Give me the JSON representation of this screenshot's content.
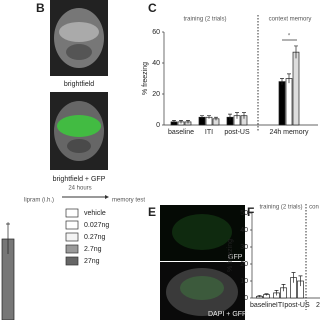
{
  "panels": {
    "b": "B",
    "c": "C",
    "e": "E",
    "f": "F"
  },
  "images": {
    "b_top": "brightfield",
    "b_bottom": "brightfield + GFP",
    "e_top": "GFP",
    "e_bottom": "DAPI + GFP"
  },
  "timeline": {
    "drug": "lipram (i.h.)",
    "delay": "24 hours",
    "test": "memory test"
  },
  "legend": [
    {
      "name": "vehicle",
      "color": "#ffffff"
    },
    {
      "name": "0.027ng",
      "color": "#ffffff"
    },
    {
      "name": "0.27ng",
      "color": "#f4f4f4"
    },
    {
      "name": "2.7ng",
      "color": "#9a9a9a"
    },
    {
      "name": "27ng",
      "color": "#666666"
    }
  ],
  "chart_data": [
    {
      "type": "bar",
      "ylabel": "% freezing",
      "categories": [
        "baseline",
        "ITI",
        "post-US",
        "24h memory"
      ],
      "series": [
        {
          "color": "#000000",
          "values": [
            2,
            5,
            5,
            28
          ],
          "errors": [
            1,
            1,
            2,
            2
          ]
        },
        {
          "color": "#ffffff",
          "values": [
            2,
            5,
            6,
            30
          ],
          "errors": [
            1,
            1,
            2,
            3
          ]
        },
        {
          "color": "#dddddd",
          "values": [
            2,
            4,
            6,
            47
          ],
          "errors": [
            1,
            1,
            2,
            4
          ]
        }
      ],
      "ylim": [
        0,
        60
      ],
      "yticks": [
        0,
        20,
        40,
        60
      ],
      "annotations": [
        "training (2 trials)",
        "context memory",
        "*"
      ]
    },
    {
      "type": "bar",
      "ylabel": "% freezing",
      "categories": [
        "baseline",
        "ITI",
        "post-US",
        "2"
      ],
      "series": [
        {
          "color": "#ffffff",
          "values": [
            1,
            3,
            12,
            null
          ],
          "errors": [
            0.5,
            1.5,
            3,
            null
          ]
        },
        {
          "color": "#ffffff",
          "values": [
            2,
            6,
            10,
            null
          ],
          "errors": [
            0.5,
            2,
            3,
            null
          ]
        }
      ],
      "ylim": [
        0,
        50
      ],
      "yticks": [
        0,
        10,
        20,
        30,
        40,
        50
      ],
      "annotations": [
        "training (2 trials)",
        "con"
      ]
    },
    {
      "type": "bar",
      "categories": [
        null
      ],
      "series": [
        {
          "color": "#777777",
          "values": [
            27
          ],
          "errors": [
            5
          ]
        }
      ],
      "ylim": [
        0,
        40
      ],
      "annotations": [
        "*"
      ]
    }
  ]
}
